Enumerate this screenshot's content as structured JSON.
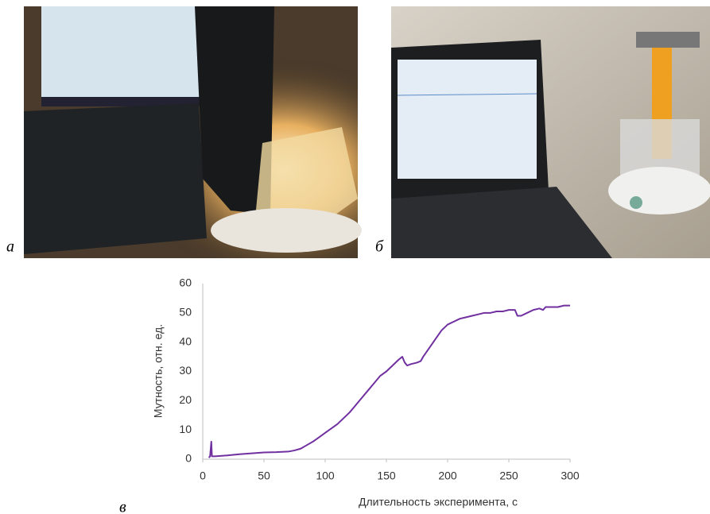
{
  "panels": {
    "a": "а",
    "b": "б",
    "c": "в"
  },
  "chart_data": {
    "type": "line",
    "x_label": "Длительность эксперимента, с",
    "y_label": "Мутность, отн. ед.",
    "x": [
      5,
      6,
      7,
      7.5,
      8,
      10,
      20,
      30,
      40,
      50,
      60,
      70,
      75,
      80,
      85,
      90,
      95,
      100,
      105,
      110,
      115,
      120,
      125,
      130,
      135,
      140,
      145,
      150,
      155,
      160,
      163,
      165,
      167,
      170,
      175,
      178,
      180,
      185,
      190,
      195,
      200,
      205,
      210,
      215,
      220,
      225,
      230,
      235,
      240,
      245,
      250,
      255,
      257,
      260,
      265,
      270,
      275,
      278,
      280,
      285,
      290,
      295,
      300
    ],
    "values": [
      0.5,
      1,
      6,
      1,
      1,
      1,
      1.3,
      1.7,
      2,
      2.3,
      2.4,
      2.6,
      3,
      3.6,
      4.8,
      6,
      7.5,
      9,
      10.5,
      12,
      14,
      16,
      18.5,
      21,
      23.5,
      26,
      28.5,
      30,
      32,
      34,
      35,
      33,
      32,
      32.5,
      33,
      33.5,
      35,
      38,
      41,
      44,
      46,
      47,
      48,
      48.5,
      49,
      49.5,
      50,
      50,
      50.5,
      50.5,
      51,
      51,
      49,
      49,
      50,
      51,
      51.5,
      51,
      52,
      52,
      52,
      52.5,
      52.5
    ],
    "color": "#7030a0",
    "xlim": [
      0,
      300
    ],
    "xticks": [
      0,
      50,
      100,
      150,
      200,
      250,
      300
    ],
    "ylim": [
      0,
      60
    ],
    "yticks": [
      0,
      10,
      20,
      30,
      40,
      50,
      60
    ],
    "grid": false
  }
}
